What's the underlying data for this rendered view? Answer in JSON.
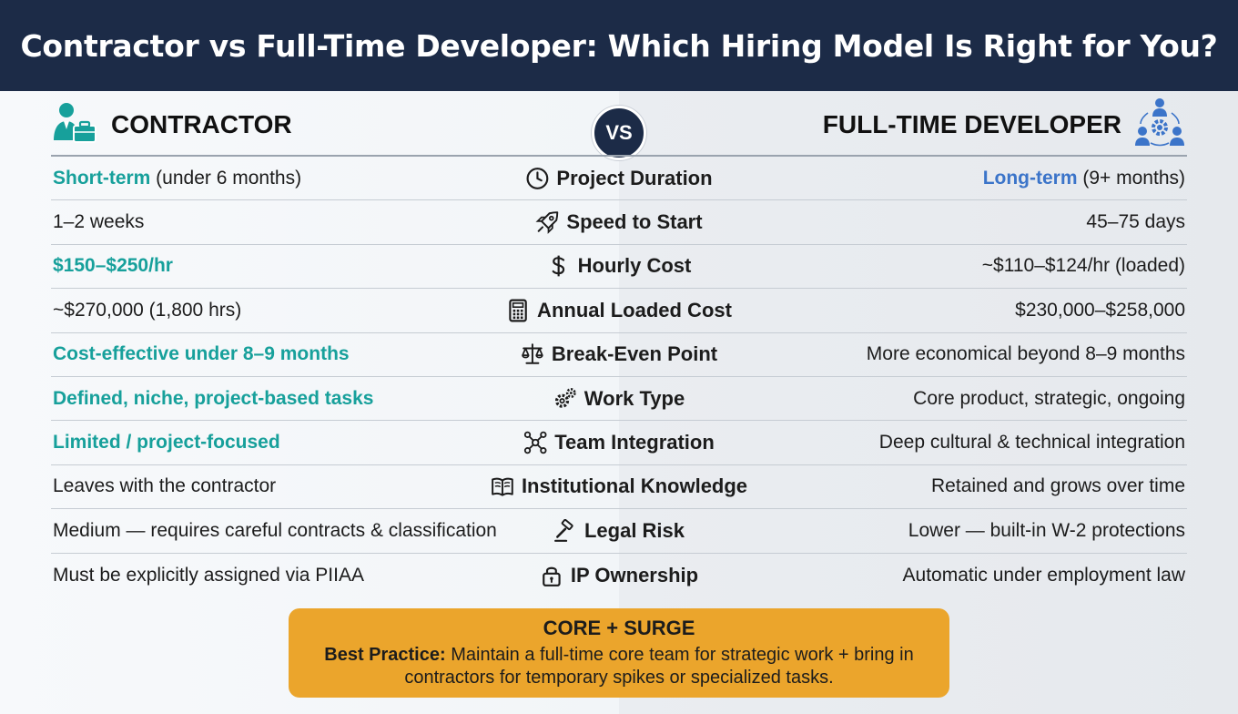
{
  "title": "Contractor vs Full-Time Developer: Which Hiring Model Is Right for You?",
  "left_header": "CONTRACTOR",
  "right_header": "FULL-TIME DEVELOPER",
  "vs": "VS",
  "colors": {
    "navy": "#1c2b47",
    "teal": "#17a09b",
    "blue": "#3b74c9",
    "orange": "#eba52c"
  },
  "rows": [
    {
      "icon": "clock-icon",
      "label": "Project Duration",
      "left": {
        "hl": "Short-term",
        "rest": " (under 6 months)"
      },
      "right": {
        "hl": "Long-term",
        "rest": " (9+ months)"
      }
    },
    {
      "icon": "rocket-icon",
      "label": "Speed to Start",
      "left": {
        "hl": "",
        "rest": "1–2 weeks"
      },
      "right": {
        "hl": "",
        "rest": "45–75 days"
      }
    },
    {
      "icon": "dollar-icon",
      "label": "Hourly Cost",
      "left": {
        "hl": "$150–$250/hr",
        "rest": ""
      },
      "right": {
        "hl": "",
        "rest": "~$110–$124/hr (loaded)"
      }
    },
    {
      "icon": "calculator-icon",
      "label": "Annual Loaded Cost",
      "left": {
        "hl": "",
        "rest": "~$270,000 (1,800 hrs)"
      },
      "right": {
        "hl": "",
        "rest": "$230,000–$258,000"
      }
    },
    {
      "icon": "scales-icon",
      "label": "Break-Even Point",
      "left": {
        "hl": "Cost-effective under 8–9 months",
        "rest": ""
      },
      "right": {
        "hl": "",
        "rest": "More economical beyond 8–9 months"
      }
    },
    {
      "icon": "gears-icon",
      "label": "Work Type",
      "left": {
        "hl": "Defined, niche, project-based tasks",
        "rest": ""
      },
      "right": {
        "hl": "",
        "rest": "Core product, strategic, ongoing"
      }
    },
    {
      "icon": "network-icon",
      "label": "Team Integration",
      "left": {
        "hl": "Limited / project-focused",
        "rest": ""
      },
      "right": {
        "hl": "",
        "rest": "Deep cultural & technical integration"
      }
    },
    {
      "icon": "book-icon",
      "label": "Institutional Knowledge",
      "left": {
        "hl": "",
        "rest": "Leaves with the contractor"
      },
      "right": {
        "hl": "",
        "rest": "Retained and grows over time"
      }
    },
    {
      "icon": "gavel-icon",
      "label": "Legal Risk",
      "left": {
        "hl": "",
        "rest": "Medium — requires careful contracts & classification"
      },
      "right": {
        "hl": "",
        "rest": "Lower — built-in W-2 protections"
      }
    },
    {
      "icon": "lock-icon",
      "label": "IP Ownership",
      "left": {
        "hl": "",
        "rest": "Must be explicitly assigned via PIIAA"
      },
      "right": {
        "hl": "",
        "rest": "Automatic under employment law"
      }
    }
  ],
  "callout": {
    "title": "CORE + SURGE",
    "lead": "Best Practice:",
    "body": " Maintain a full-time core team for strategic work + bring in contractors for temporary spikes or specialized tasks."
  }
}
